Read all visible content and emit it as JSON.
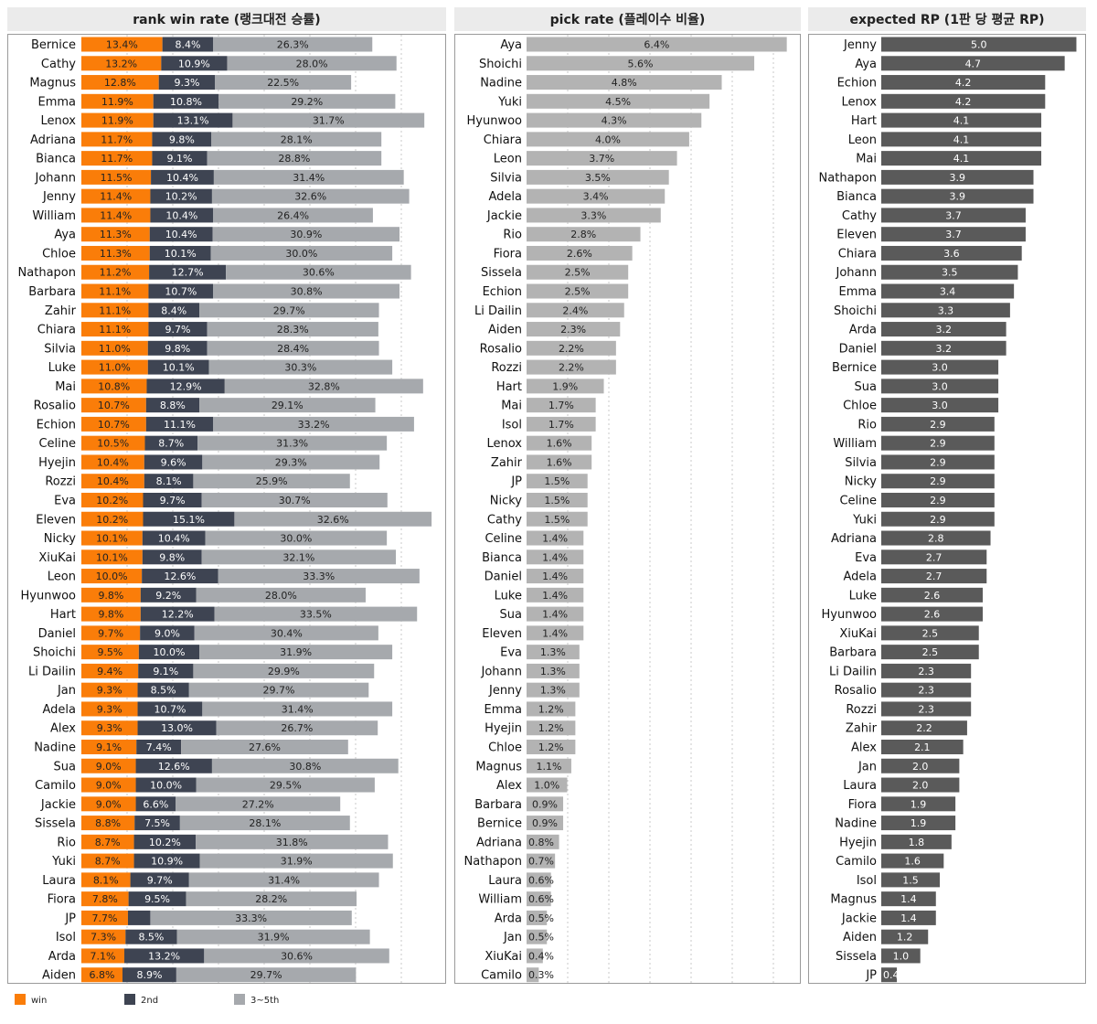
{
  "colors": {
    "win": "#fa7d09",
    "second": "#3e4452",
    "third_to_fifth": "#a6a9ad",
    "pick": "#b3b3b3",
    "rp": "#5a5a5a",
    "header_bg": "#ebebeb",
    "grid": "#c8c8c8"
  },
  "legend": [
    {
      "key": "win",
      "label": "win"
    },
    {
      "key": "second",
      "label": "2nd"
    },
    {
      "key": "third_to_fifth",
      "label": "3~5th"
    }
  ],
  "chart_data": [
    {
      "type": "bar",
      "subtype": "stacked-horizontal",
      "title": "rank win rate (랭크대전 승률)",
      "categories": [
        "Bernice",
        "Cathy",
        "Magnus",
        "Emma",
        "Lenox",
        "Adriana",
        "Bianca",
        "Johann",
        "Jenny",
        "William",
        "Aya",
        "Chloe",
        "Nathapon",
        "Barbara",
        "Zahir",
        "Chiara",
        "Silvia",
        "Luke",
        "Mai",
        "Rosalio",
        "Echion",
        "Celine",
        "Hyejin",
        "Rozzi",
        "Eva",
        "Eleven",
        "Nicky",
        "XiuKai",
        "Leon",
        "Hyunwoo",
        "Hart",
        "Daniel",
        "Shoichi",
        "Li Dailin",
        "Jan",
        "Adela",
        "Alex",
        "Nadine",
        "Sua",
        "Camilo",
        "Jackie",
        "Sissela",
        "Rio",
        "Yuki",
        "Laura",
        "Fiora",
        "JP",
        "Isol",
        "Arda",
        "Aiden"
      ],
      "series": [
        {
          "name": "win",
          "values": [
            13.4,
            13.2,
            12.8,
            11.9,
            11.9,
            11.7,
            11.7,
            11.5,
            11.4,
            11.4,
            11.3,
            11.3,
            11.2,
            11.1,
            11.1,
            11.1,
            11.0,
            11.0,
            10.8,
            10.7,
            10.7,
            10.5,
            10.4,
            10.4,
            10.2,
            10.2,
            10.1,
            10.1,
            10.0,
            9.8,
            9.8,
            9.7,
            9.5,
            9.4,
            9.3,
            9.3,
            9.3,
            9.1,
            9.0,
            9.0,
            9.0,
            8.8,
            8.7,
            8.7,
            8.1,
            7.8,
            7.7,
            7.3,
            7.1,
            6.8
          ]
        },
        {
          "name": "2nd",
          "values": [
            8.4,
            10.9,
            9.3,
            10.8,
            13.1,
            9.8,
            9.1,
            10.4,
            10.2,
            10.4,
            10.4,
            10.1,
            12.7,
            10.7,
            8.4,
            9.7,
            9.8,
            10.1,
            12.9,
            8.8,
            11.1,
            8.7,
            9.6,
            8.1,
            9.7,
            15.1,
            10.4,
            9.8,
            12.6,
            9.2,
            12.2,
            9.0,
            10.0,
            9.1,
            8.5,
            10.7,
            13.0,
            7.4,
            12.6,
            10.0,
            6.6,
            7.5,
            10.2,
            10.9,
            9.7,
            9.5,
            3.7,
            8.5,
            13.2,
            8.9
          ]
        },
        {
          "name": "3~5th",
          "values": [
            26.3,
            28.0,
            22.5,
            29.2,
            31.7,
            28.1,
            28.8,
            31.4,
            32.6,
            26.4,
            30.9,
            30.0,
            30.6,
            30.8,
            29.7,
            28.3,
            28.4,
            30.3,
            32.8,
            29.1,
            33.2,
            31.3,
            29.3,
            25.9,
            30.7,
            32.6,
            30.0,
            32.1,
            33.3,
            28.0,
            33.5,
            30.4,
            31.9,
            29.9,
            29.7,
            31.4,
            26.7,
            27.6,
            30.8,
            29.5,
            27.2,
            28.1,
            31.8,
            31.9,
            31.4,
            28.2,
            33.3,
            31.9,
            30.6,
            29.7
          ]
        }
      ],
      "value_labels": {
        "win": [
          "13.4%",
          "13.2%",
          "12.8%",
          "11.9%",
          "11.9%",
          "11.7%",
          "11.7%",
          "11.5%",
          "11.4%",
          "11.4%",
          "11.3%",
          "11.3%",
          "11.2%",
          "11.1%",
          "11.1%",
          "11.1%",
          "11.0%",
          "11.0%",
          "10.8%",
          "10.7%",
          "10.7%",
          "10.5%",
          "10.4%",
          "10.4%",
          "10.2%",
          "10.2%",
          "10.1%",
          "10.1%",
          "10.0%",
          "9.8%",
          "9.8%",
          "9.7%",
          "9.5%",
          "9.4%",
          "9.3%",
          "9.3%",
          "9.3%",
          "9.1%",
          "9.0%",
          "9.0%",
          "9.0%",
          "8.8%",
          "8.7%",
          "8.7%",
          "8.1%",
          "7.8%",
          "7.7%",
          "7.3%",
          "7.1%",
          "6.8%"
        ],
        "2nd": [
          "8.4%",
          "10.9%",
          "9.3%",
          "10.8%",
          "13.1%",
          "9.8%",
          "9.1%",
          "10.4%",
          "10.2%",
          "10.4%",
          "10.4%",
          "10.1%",
          "12.7%",
          "10.7%",
          "8.4%",
          "9.7%",
          "9.8%",
          "10.1%",
          "12.9%",
          "8.8%",
          "11.1%",
          "8.7%",
          "9.6%",
          "8.1%",
          "9.7%",
          "15.1%",
          "10.4%",
          "9.8%",
          "12.6%",
          "9.2%",
          "12.2%",
          "9.0%",
          "10.0%",
          "9.1%",
          "8.5%",
          "10.7%",
          "13.0%",
          "7.4%",
          "12.6%",
          "10.0%",
          "6.6%",
          "7.5%",
          "10.2%",
          "10.9%",
          "9.7%",
          "9.5%",
          "",
          "8.5%",
          "13.2%",
          "8.9%"
        ],
        "3~5th": [
          "26.3%",
          "28.0%",
          "22.5%",
          "29.2%",
          "31.7%",
          "28.1%",
          "28.8%",
          "31.4%",
          "32.6%",
          "26.4%",
          "30.9%",
          "30.0%",
          "30.6%",
          "30.8%",
          "29.7%",
          "28.3%",
          "28.4%",
          "30.3%",
          "32.8%",
          "29.1%",
          "33.2%",
          "31.3%",
          "29.3%",
          "25.9%",
          "30.7%",
          "32.6%",
          "30.0%",
          "32.1%",
          "33.3%",
          "28.0%",
          "33.5%",
          "30.4%",
          "31.9%",
          "29.9%",
          "29.7%",
          "31.4%",
          "26.7%",
          "27.6%",
          "30.8%",
          "29.5%",
          "27.2%",
          "28.1%",
          "31.8%",
          "31.9%",
          "31.4%",
          "28.2%",
          "33.3%",
          "31.9%",
          "30.6%",
          "29.7%"
        ]
      },
      "x_range": [
        0,
        60
      ],
      "grid": true
    },
    {
      "type": "bar",
      "subtype": "horizontal",
      "title": "pick rate (플레이수 비율)",
      "categories": [
        "Aya",
        "Shoichi",
        "Nadine",
        "Yuki",
        "Hyunwoo",
        "Chiara",
        "Leon",
        "Silvia",
        "Adela",
        "Jackie",
        "Rio",
        "Fiora",
        "Sissela",
        "Echion",
        "Li Dailin",
        "Aiden",
        "Rosalio",
        "Rozzi",
        "Hart",
        "Mai",
        "Isol",
        "Lenox",
        "Zahir",
        "JP",
        "Nicky",
        "Cathy",
        "Celine",
        "Bianca",
        "Daniel",
        "Luke",
        "Sua",
        "Eleven",
        "Eva",
        "Johann",
        "Jenny",
        "Emma",
        "Hyejin",
        "Chloe",
        "Magnus",
        "Alex",
        "Barbara",
        "Bernice",
        "Adriana",
        "Nathapon",
        "Laura",
        "William",
        "Arda",
        "Jan",
        "XiuKai",
        "Camilo"
      ],
      "values": [
        6.4,
        5.6,
        4.8,
        4.5,
        4.3,
        4.0,
        3.7,
        3.5,
        3.4,
        3.3,
        2.8,
        2.6,
        2.5,
        2.5,
        2.4,
        2.3,
        2.2,
        2.2,
        1.9,
        1.7,
        1.7,
        1.6,
        1.6,
        1.5,
        1.5,
        1.5,
        1.4,
        1.4,
        1.4,
        1.4,
        1.4,
        1.4,
        1.3,
        1.3,
        1.3,
        1.2,
        1.2,
        1.2,
        1.1,
        1.0,
        0.9,
        0.9,
        0.8,
        0.7,
        0.6,
        0.6,
        0.5,
        0.5,
        0.4,
        0.3
      ],
      "value_labels": [
        "6.4%",
        "5.6%",
        "4.8%",
        "4.5%",
        "4.3%",
        "4.0%",
        "3.7%",
        "3.5%",
        "3.4%",
        "3.3%",
        "2.8%",
        "2.6%",
        "2.5%",
        "2.5%",
        "2.4%",
        "2.3%",
        "2.2%",
        "2.2%",
        "1.9%",
        "1.7%",
        "1.7%",
        "1.6%",
        "1.6%",
        "1.5%",
        "1.5%",
        "1.5%",
        "1.4%",
        "1.4%",
        "1.4%",
        "1.4%",
        "1.4%",
        "1.4%",
        "1.3%",
        "1.3%",
        "1.3%",
        "1.2%",
        "1.2%",
        "1.2%",
        "1.1%",
        "1.0%",
        "0.9%",
        "0.9%",
        "0.8%",
        "0.7%",
        "0.6%",
        "0.6%",
        "0.5%",
        "0.5%",
        "0.4%",
        "0.3%"
      ],
      "x_range": [
        0,
        6.7
      ],
      "grid": true
    },
    {
      "type": "bar",
      "subtype": "horizontal",
      "title": "expected RP (1판 당 평균 RP)",
      "categories": [
        "Jenny",
        "Aya",
        "Echion",
        "Lenox",
        "Hart",
        "Leon",
        "Mai",
        "Nathapon",
        "Bianca",
        "Cathy",
        "Eleven",
        "Chiara",
        "Johann",
        "Emma",
        "Shoichi",
        "Arda",
        "Daniel",
        "Bernice",
        "Sua",
        "Chloe",
        "Rio",
        "William",
        "Silvia",
        "Nicky",
        "Celine",
        "Yuki",
        "Adriana",
        "Eva",
        "Adela",
        "Luke",
        "Hyunwoo",
        "XiuKai",
        "Barbara",
        "Li Dailin",
        "Rosalio",
        "Rozzi",
        "Zahir",
        "Alex",
        "Jan",
        "Laura",
        "Fiora",
        "Nadine",
        "Hyejin",
        "Camilo",
        "Isol",
        "Magnus",
        "Jackie",
        "Aiden",
        "Sissela",
        "JP"
      ],
      "values": [
        5.0,
        4.7,
        4.2,
        4.2,
        4.1,
        4.1,
        4.1,
        3.9,
        3.9,
        3.7,
        3.7,
        3.6,
        3.5,
        3.4,
        3.3,
        3.2,
        3.2,
        3.0,
        3.0,
        3.0,
        2.9,
        2.9,
        2.9,
        2.9,
        2.9,
        2.9,
        2.8,
        2.7,
        2.7,
        2.6,
        2.6,
        2.5,
        2.5,
        2.3,
        2.3,
        2.3,
        2.2,
        2.1,
        2.0,
        2.0,
        1.9,
        1.9,
        1.8,
        1.6,
        1.5,
        1.4,
        1.4,
        1.2,
        1.0,
        0.4
      ],
      "value_labels": [
        "5.0",
        "4.7",
        "4.2",
        "4.2",
        "4.1",
        "4.1",
        "4.1",
        "3.9",
        "3.9",
        "3.7",
        "3.7",
        "3.6",
        "3.5",
        "3.4",
        "3.3",
        "3.2",
        "3.2",
        "3.0",
        "3.0",
        "3.0",
        "2.9",
        "2.9",
        "2.9",
        "2.9",
        "2.9",
        "2.9",
        "2.8",
        "2.7",
        "2.7",
        "2.6",
        "2.6",
        "2.5",
        "2.5",
        "2.3",
        "2.3",
        "2.3",
        "2.2",
        "2.1",
        "2.0",
        "2.0",
        "1.9",
        "1.9",
        "1.8",
        "1.6",
        "1.5",
        "1.4",
        "1.4",
        "1.2",
        "1.0",
        "0.4"
      ],
      "x_range": [
        0,
        5.2
      ],
      "grid": false
    }
  ]
}
